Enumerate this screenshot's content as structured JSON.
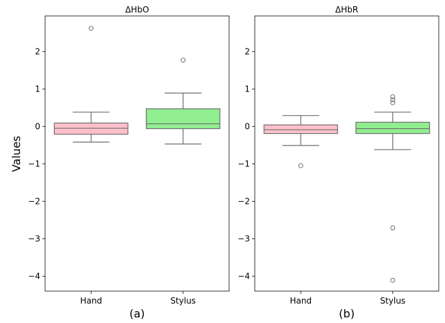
{
  "chart_data": [
    {
      "type": "box",
      "title": "ΔHbO",
      "ylabel": "Values",
      "xlabel": "(a)",
      "categories": [
        "Hand",
        "Stylus"
      ],
      "ylim": [
        -4.4,
        2.95
      ],
      "yticks": [
        2,
        1,
        0,
        -1,
        -2,
        -3,
        -4
      ],
      "ytick_labels": [
        "2",
        "1",
        "0",
        "−1",
        "−2",
        "−3",
        "−4"
      ],
      "boxes": [
        {
          "category": "Hand",
          "color": "#ffc0cb",
          "whisker_low": -0.42,
          "q1": -0.21,
          "median": -0.05,
          "q3": 0.09,
          "whisker_high": 0.38,
          "outliers": [
            2.62
          ]
        },
        {
          "category": "Stylus",
          "color": "#90ee90",
          "whisker_low": -0.47,
          "q1": -0.06,
          "median": 0.07,
          "q3": 0.47,
          "whisker_high": 0.89,
          "outliers": [
            1.77
          ]
        }
      ]
    },
    {
      "type": "box",
      "title": "ΔHbR",
      "xlabel": "(b)",
      "categories": [
        "Hand",
        "Stylus"
      ],
      "ylim": [
        -4.4,
        2.95
      ],
      "yticks": [
        2,
        1,
        0,
        -1,
        -2,
        -3,
        -4
      ],
      "ytick_labels": [
        "2",
        "1",
        "0",
        "−1",
        "−2",
        "−3",
        "−4"
      ],
      "boxes": [
        {
          "category": "Hand",
          "color": "#ffc0cb",
          "whisker_low": -0.51,
          "q1": -0.19,
          "median": -0.09,
          "q3": 0.04,
          "whisker_high": 0.29,
          "outliers": [
            -1.05
          ]
        },
        {
          "category": "Stylus",
          "color": "#90ee90",
          "whisker_low": -0.62,
          "q1": -0.19,
          "median": -0.06,
          "q3": 0.11,
          "whisker_high": 0.38,
          "outliers": [
            0.63,
            0.71,
            0.79,
            -2.71,
            -4.11
          ]
        }
      ]
    }
  ]
}
